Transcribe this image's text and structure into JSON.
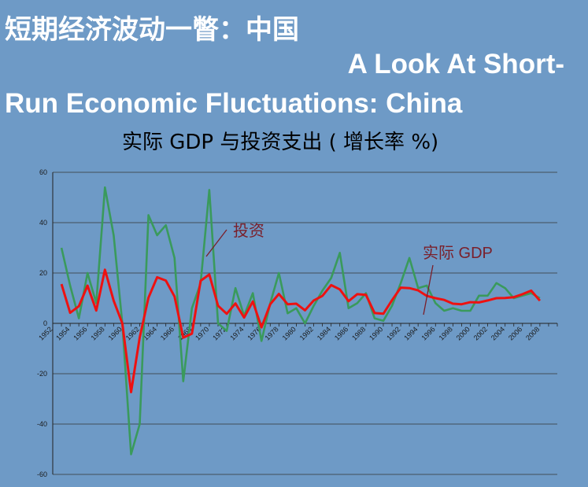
{
  "slide": {
    "title_zh": "短期经济波动一瞥：中国",
    "title_en_line1": "A Look At Short-",
    "title_en_line2": "Run Economic Fluctuations: China",
    "subtitle": "实际 GDP 与投资支出 ( 增长率 %)"
  },
  "chart_data": {
    "type": "line",
    "title": "实际 GDP 与投资支出 ( 增长率 %)",
    "xlabel": "",
    "ylabel": "",
    "ylim": [
      -60,
      60
    ],
    "yticks": [
      "60",
      "40",
      "20",
      "0",
      "-20",
      "-40",
      "-60"
    ],
    "xtick_labels": [
      "1952",
      "1954",
      "1956",
      "1958",
      "1960",
      "1962",
      "1964",
      "1966",
      "1968",
      "1970",
      "1972",
      "1974",
      "1976",
      "1978",
      "1980",
      "1982",
      "1984",
      "1986",
      "1988",
      "1990",
      "1992",
      "1994",
      "1996",
      "1998",
      "2000",
      "2002",
      "2004",
      "2006",
      "2008"
    ],
    "grid": true,
    "x": [
      1953,
      1954,
      1955,
      1956,
      1957,
      1958,
      1959,
      1960,
      1961,
      1962,
      1963,
      1964,
      1965,
      1966,
      1967,
      1968,
      1969,
      1970,
      1971,
      1972,
      1973,
      1974,
      1975,
      1976,
      1977,
      1978,
      1979,
      1980,
      1981,
      1982,
      1983,
      1984,
      1985,
      1986,
      1987,
      1988,
      1989,
      1990,
      1991,
      1992,
      1993,
      1994,
      1995,
      1996,
      1997,
      1998,
      1999,
      2000,
      2001,
      2002,
      2003,
      2004,
      2005,
      2006,
      2007,
      2008
    ],
    "series": [
      {
        "name": "实际 GDP",
        "color": "#ee1111",
        "values": [
          15.6,
          4.2,
          6.8,
          15.0,
          5.1,
          21.3,
          9.0,
          0.0,
          -27.3,
          -5.6,
          10.2,
          18.3,
          17.0,
          10.7,
          -5.7,
          -4.1,
          16.9,
          19.4,
          7.0,
          3.8,
          7.9,
          2.3,
          8.7,
          -1.6,
          7.6,
          11.7,
          7.6,
          7.8,
          5.2,
          9.1,
          10.9,
          15.2,
          13.5,
          8.8,
          11.6,
          11.3,
          4.1,
          3.8,
          9.2,
          14.2,
          14.0,
          13.1,
          10.9,
          10.0,
          9.3,
          7.8,
          7.6,
          8.4,
          8.3,
          9.1,
          10.0,
          10.1,
          10.4,
          11.6,
          13.0,
          9.0
        ]
      },
      {
        "name": "投资",
        "color": "#3a9a5c",
        "values": [
          30.0,
          15.0,
          2.0,
          20.0,
          8.0,
          54.0,
          35.0,
          0.0,
          -52.0,
          -40.0,
          43.0,
          35.0,
          39.0,
          26.0,
          -23.0,
          6.0,
          16.0,
          53.0,
          0.0,
          -3.0,
          14.0,
          3.0,
          12.0,
          -7.0,
          8.0,
          20.0,
          4.0,
          6.0,
          0.0,
          7.0,
          13.0,
          18.0,
          28.0,
          6.0,
          8.0,
          12.0,
          2.0,
          1.0,
          7.0,
          16.0,
          26.0,
          14.0,
          15.0,
          8.0,
          5.0,
          6.0,
          5.0,
          5.0,
          11.0,
          11.0,
          16.0,
          14.0,
          10.0,
          11.0,
          12.0,
          10.0
        ]
      }
    ],
    "annotations": [
      {
        "text": "投资",
        "color": "#7a1f2a"
      },
      {
        "text": "实际 GDP",
        "color": "#7a1f2a"
      }
    ]
  }
}
